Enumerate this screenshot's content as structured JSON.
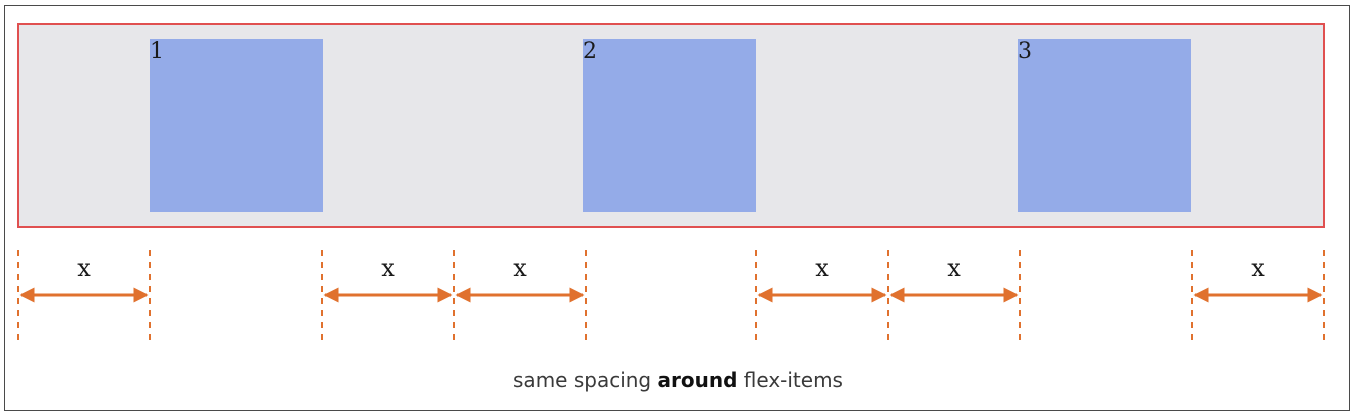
{
  "items": [
    "1",
    "2",
    "3"
  ],
  "gap_label": "x",
  "caption": {
    "prefix": "same spacing ",
    "emphasis": "around",
    "suffix": " flex-items"
  },
  "colors": {
    "container_bg": "#e7e7ea",
    "container_border": "#e05050",
    "item_bg": "#94abe8",
    "arrow": "#e0712e",
    "frame_border": "#4a4a4a"
  }
}
